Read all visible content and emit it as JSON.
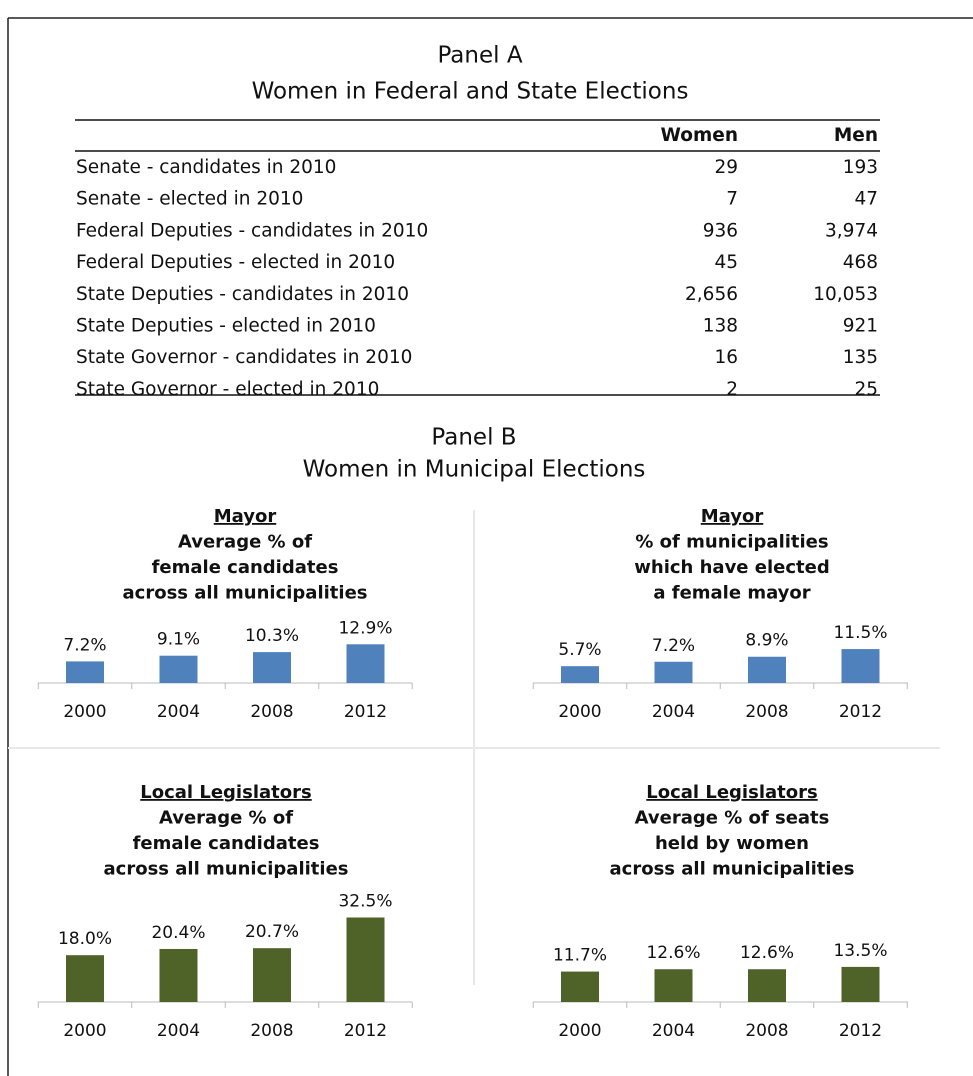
{
  "panel_a": {
    "title": "Panel A",
    "subtitle": "Women in Federal and State Elections",
    "table": {
      "header": [
        "Women",
        "Men"
      ],
      "rows": [
        [
          "Senate - candidates in 2010",
          "29",
          "193"
        ],
        [
          "Senate - elected in 2010",
          "7",
          "47"
        ],
        [
          "Federal Deputies - candidates in 2010",
          "936",
          "3,974"
        ],
        [
          "Federal Deputies - elected in 2010",
          "45",
          "468"
        ],
        [
          "State Deputies - candidates in 2010",
          "2,656",
          "10,053"
        ],
        [
          "State Deputies - elected in 2010",
          "138",
          "921"
        ],
        [
          "State Governor - candidates in 2010",
          "16",
          "135"
        ],
        [
          "State Governor - elected in 2010",
          "2",
          "25"
        ]
      ]
    }
  },
  "panel_b": {
    "title": "Panel B",
    "subtitle": "Women  in Municipal Elections"
  },
  "chart_data": [
    {
      "type": "bar",
      "title": "Mayor",
      "subtitle": [
        "Average % of",
        "female candidates",
        "across all municipalities"
      ],
      "categories": [
        "2000",
        "2004",
        "2008",
        "2012"
      ],
      "values": [
        7.2,
        9.1,
        10.3,
        12.9
      ],
      "value_labels": [
        "7.2%",
        "9.1%",
        "10.3%",
        "12.9%"
      ],
      "color": "#4f81bd"
    },
    {
      "type": "bar",
      "title": "Mayor",
      "subtitle": [
        "% of municipalities",
        "which have elected",
        "a female mayor"
      ],
      "categories": [
        "2000",
        "2004",
        "2008",
        "2012"
      ],
      "values": [
        5.7,
        7.2,
        8.9,
        11.5
      ],
      "value_labels": [
        "5.7%",
        "7.2%",
        "8.9%",
        "11.5%"
      ],
      "color": "#4f81bd"
    },
    {
      "type": "bar",
      "title": "Local Legislators",
      "subtitle": [
        "Average % of",
        "female candidates",
        "across all municipalities"
      ],
      "categories": [
        "2000",
        "2004",
        "2008",
        "2012"
      ],
      "values": [
        18.0,
        20.4,
        20.7,
        32.5
      ],
      "value_labels": [
        "18.0%",
        "20.4%",
        "20.7%",
        "32.5%"
      ],
      "color": "#4f6228"
    },
    {
      "type": "bar",
      "title": "Local Legislators",
      "subtitle": [
        "Average % of seats",
        "held by women",
        "across all municipalities"
      ],
      "categories": [
        "2000",
        "2004",
        "2008",
        "2012"
      ],
      "values": [
        11.7,
        12.6,
        12.6,
        13.5
      ],
      "value_labels": [
        "11.7%",
        "12.6%",
        "12.6%",
        "13.5%"
      ],
      "color": "#4f6228"
    }
  ]
}
